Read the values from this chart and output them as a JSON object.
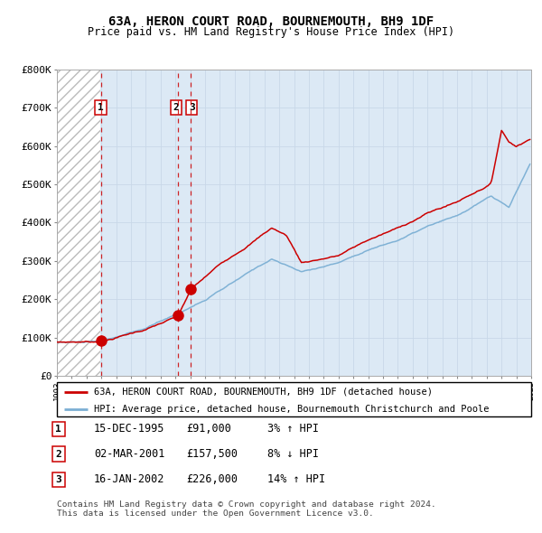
{
  "title": "63A, HERON COURT ROAD, BOURNEMOUTH, BH9 1DF",
  "subtitle": "Price paid vs. HM Land Registry's House Price Index (HPI)",
  "legend_line1": "63A, HERON COURT ROAD, BOURNEMOUTH, BH9 1DF (detached house)",
  "legend_line2": "HPI: Average price, detached house, Bournemouth Christchurch and Poole",
  "transactions": [
    {
      "num": 1,
      "date": "15-DEC-1995",
      "price": 91000,
      "hpi_pct": "3%",
      "direction": "↑"
    },
    {
      "num": 2,
      "date": "02-MAR-2001",
      "price": 157500,
      "hpi_pct": "8%",
      "direction": "↓"
    },
    {
      "num": 3,
      "date": "16-JAN-2002",
      "price": 226000,
      "hpi_pct": "14%",
      "direction": "↑"
    }
  ],
  "transaction_years": [
    1995.96,
    2001.17,
    2002.05
  ],
  "transaction_prices": [
    91000,
    157500,
    226000
  ],
  "hpi_color": "#7bafd4",
  "price_color": "#cc0000",
  "marker_color": "#cc0000",
  "vline_color": "#cc0000",
  "grid_color": "#c8d8e8",
  "bg_color": "#dce9f5",
  "footnote": "Contains HM Land Registry data © Crown copyright and database right 2024.\nThis data is licensed under the Open Government Licence v3.0.",
  "ylim": [
    0,
    800000
  ],
  "yticks": [
    0,
    100000,
    200000,
    300000,
    400000,
    500000,
    600000,
    700000,
    800000
  ],
  "ytick_labels": [
    "£0",
    "£100K",
    "£200K",
    "£300K",
    "£400K",
    "£500K",
    "£600K",
    "£700K",
    "£800K"
  ]
}
